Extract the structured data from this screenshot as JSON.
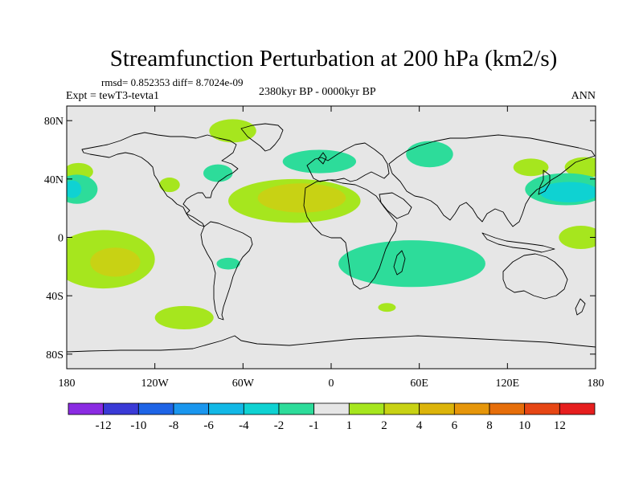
{
  "title": "Streamfunction Perturbation at 200 hPa (km2/s)",
  "stats_line": "rmsd= 0.852353 diff= 8.7024e-09",
  "experiment": "Expt = tewT3-tevta1",
  "period": "2380kyr BP - 0000kyr BP",
  "season": "ANN",
  "lat_ticks": [
    {
      "label": "80N",
      "lat": 80
    },
    {
      "label": "40N",
      "lat": 40
    },
    {
      "label": "0",
      "lat": 0
    },
    {
      "label": "40S",
      "lat": -40
    },
    {
      "label": "80S",
      "lat": -80
    }
  ],
  "lon_ticks": [
    {
      "label": "180",
      "lon": -180
    },
    {
      "label": "120W",
      "lon": -120
    },
    {
      "label": "60W",
      "lon": -60
    },
    {
      "label": "0",
      "lon": 0
    },
    {
      "label": "60E",
      "lon": 60
    },
    {
      "label": "120E",
      "lon": 120
    },
    {
      "label": "180",
      "lon": 180
    }
  ],
  "map_extent": {
    "lon": [
      -180,
      180
    ],
    "lat": [
      -90,
      90
    ]
  },
  "colorbar": {
    "colors": [
      "#8a2be2",
      "#3a3ad6",
      "#1e64e6",
      "#1a96ee",
      "#12b8e6",
      "#0fd2d2",
      "#2ddc9a",
      "#e6e6e6",
      "#a6e61e",
      "#c8d214",
      "#dcb40a",
      "#e6960a",
      "#e66e0a",
      "#e64614",
      "#e61e1e"
    ],
    "labels": [
      "-12",
      "-10",
      "-8",
      "-6",
      "-4",
      "-2",
      "-1",
      "1",
      "2",
      "4",
      "6",
      "8",
      "10",
      "12"
    ]
  },
  "fields": [
    {
      "level": "1",
      "color": "#a6e61e",
      "lon": -67,
      "lat": 73,
      "rx": 16,
      "ry": 8
    },
    {
      "level": "1",
      "color": "#a6e61e",
      "lon": -172,
      "lat": 45,
      "rx": 10,
      "ry": 6
    },
    {
      "level": "1",
      "color": "#a6e61e",
      "lon": -110,
      "lat": 36,
      "rx": 7,
      "ry": 5
    },
    {
      "level": "1",
      "color": "#a6e61e",
      "lon": -25,
      "lat": 25,
      "rx": 45,
      "ry": 15
    },
    {
      "level": "2",
      "color": "#c8d214",
      "lon": -20,
      "lat": 27,
      "rx": 30,
      "ry": 10
    },
    {
      "level": "1",
      "color": "#a6e61e",
      "lon": -155,
      "lat": -15,
      "rx": 35,
      "ry": 20
    },
    {
      "level": "2",
      "color": "#c8d214",
      "lon": -147,
      "lat": -17,
      "rx": 17,
      "ry": 10
    },
    {
      "level": "1",
      "color": "#a6e61e",
      "lon": -100,
      "lat": -55,
      "rx": 20,
      "ry": 8
    },
    {
      "level": "1",
      "color": "#a6e61e",
      "lon": 136,
      "lat": 48,
      "rx": 12,
      "ry": 6
    },
    {
      "level": "1",
      "color": "#a6e61e",
      "lon": 173,
      "lat": 48,
      "rx": 14,
      "ry": 7
    },
    {
      "level": "1",
      "color": "#a6e61e",
      "lon": 170,
      "lat": 0,
      "rx": 15,
      "ry": 8
    },
    {
      "level": "1",
      "color": "#a6e61e",
      "lon": 38,
      "lat": -48,
      "rx": 6,
      "ry": 3
    },
    {
      "level": "-1",
      "color": "#2ddc9a",
      "lon": -77,
      "lat": 44,
      "rx": 10,
      "ry": 6
    },
    {
      "level": "-1",
      "color": "#2ddc9a",
      "lon": -8,
      "lat": 52,
      "rx": 25,
      "ry": 8
    },
    {
      "level": "-1",
      "color": "#2ddc9a",
      "lon": 67,
      "lat": 57,
      "rx": 16,
      "ry": 9
    },
    {
      "level": "-1",
      "color": "#2ddc9a",
      "lon": 55,
      "lat": -18,
      "rx": 50,
      "ry": 16
    },
    {
      "level": "-1",
      "color": "#2ddc9a",
      "lon": -70,
      "lat": -18,
      "rx": 8,
      "ry": 4
    },
    {
      "level": "-1",
      "color": "#2ddc9a",
      "lon": -173,
      "lat": 33,
      "rx": 14,
      "ry": 10
    },
    {
      "level": "-2",
      "color": "#0fd2d2",
      "lon": -176,
      "lat": 33,
      "rx": 6,
      "ry": 6
    },
    {
      "level": "-1",
      "color": "#2ddc9a",
      "lon": 160,
      "lat": 33,
      "rx": 28,
      "ry": 11
    },
    {
      "level": "-2",
      "color": "#0fd2d2",
      "lon": 162,
      "lat": 31,
      "rx": 20,
      "ry": 7
    }
  ]
}
